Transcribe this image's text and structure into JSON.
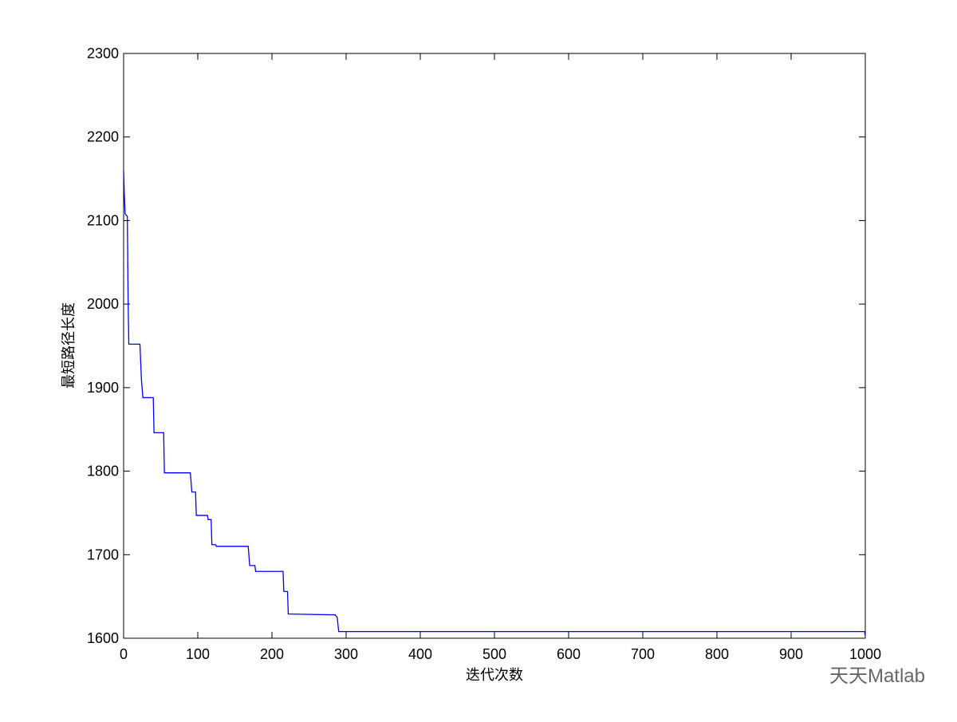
{
  "chart_data": {
    "type": "line",
    "xlabel": "迭代次数",
    "ylabel": "最短路径长度",
    "watermark": "天天Matlab",
    "series": [
      {
        "color": "#0000ff",
        "x": [
          0,
          1,
          2,
          5,
          6,
          7,
          22,
          24,
          26,
          40,
          41,
          54,
          55,
          90,
          92,
          97,
          98,
          113,
          114,
          118,
          119,
          124,
          125,
          168,
          170,
          177,
          178,
          215,
          216,
          221,
          222,
          285,
          288,
          290,
          999,
          1000
        ],
        "values": [
          2160,
          2130,
          2108,
          2105,
          2010,
          1952,
          1952,
          1910,
          1888,
          1888,
          1846,
          1846,
          1798,
          1798,
          1775,
          1775,
          1747,
          1747,
          1742,
          1742,
          1712,
          1712,
          1710,
          1710,
          1687,
          1687,
          1680,
          1680,
          1656,
          1656,
          1629,
          1628,
          1625,
          1608,
          1608,
          1603
        ]
      }
    ],
    "xlim": [
      0,
      1000
    ],
    "xticks": [
      0,
      100,
      200,
      300,
      400,
      500,
      600,
      700,
      800,
      900,
      1000
    ],
    "ylim": [
      1600,
      2300
    ],
    "yticks": [
      1600,
      1700,
      1800,
      1900,
      2000,
      2100,
      2200,
      2300
    ]
  }
}
